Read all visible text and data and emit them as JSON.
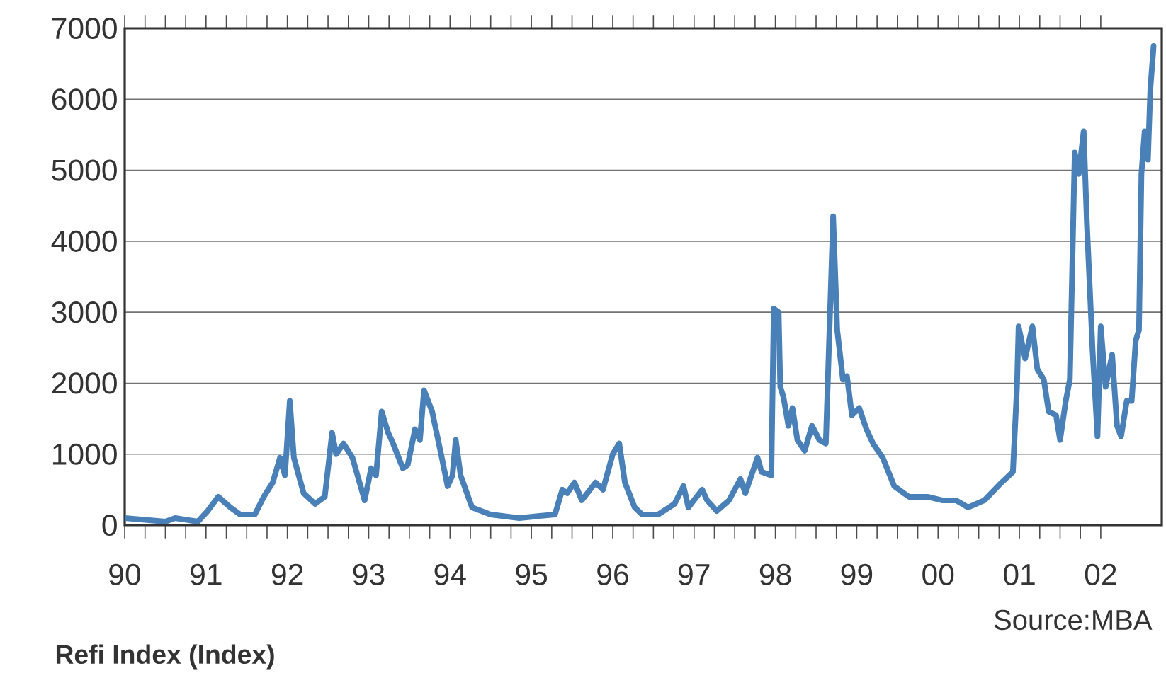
{
  "chart_data": {
    "type": "line",
    "title": "Refi Index (Index)",
    "annotations": [
      "Source:MBA"
    ],
    "x": [
      1990.0,
      1990.5,
      1990.62,
      1990.9,
      1991.02,
      1991.15,
      1991.3,
      1991.42,
      1991.6,
      1991.71,
      1991.82,
      1991.91,
      1991.97,
      1992.03,
      1992.08,
      1992.2,
      1992.34,
      1992.46,
      1992.55,
      1992.6,
      1992.69,
      1992.8,
      1992.95,
      1993.03,
      1993.09,
      1993.16,
      1993.24,
      1993.3,
      1993.42,
      1993.48,
      1993.57,
      1993.63,
      1993.68,
      1993.78,
      1993.89,
      1993.97,
      1994.03,
      1994.07,
      1994.13,
      1994.27,
      1994.5,
      1994.85,
      1995.29,
      1995.38,
      1995.44,
      1995.53,
      1995.62,
      1995.79,
      1995.88,
      1996.0,
      1996.08,
      1996.15,
      1996.27,
      1996.36,
      1996.56,
      1996.76,
      1996.87,
      1996.93,
      1997.1,
      1997.16,
      1997.28,
      1997.43,
      1997.57,
      1997.63,
      1997.78,
      1997.83,
      1997.95,
      1997.98,
      1998.04,
      1998.06,
      1998.1,
      1998.16,
      1998.21,
      1998.27,
      1998.36,
      1998.45,
      1998.54,
      1998.62,
      1998.71,
      1998.76,
      1998.83,
      1998.88,
      1998.94,
      1999.03,
      1999.12,
      1999.2,
      1999.32,
      1999.46,
      1999.64,
      1999.87,
      2000.05,
      2000.22,
      2000.37,
      2000.57,
      2000.78,
      2000.92,
      2000.97,
      2000.99,
      2001.07,
      2001.16,
      2001.22,
      2001.3,
      2001.36,
      2001.45,
      2001.5,
      2001.57,
      2001.62,
      2001.68,
      2001.73,
      2001.79,
      2001.83,
      2001.9,
      2001.96,
      2002.0,
      2002.06,
      2002.14,
      2002.2,
      2002.25,
      2002.32,
      2002.38,
      2002.43,
      2002.47,
      2002.5,
      2002.54,
      2002.58,
      2002.61,
      2002.65
    ],
    "series": [
      {
        "color": "#4a80b8",
        "values": [
          100,
          50,
          100,
          50,
          200,
          400,
          250,
          150,
          150,
          400,
          600,
          950,
          700,
          1750,
          950,
          450,
          300,
          400,
          1300,
          1000,
          1150,
          950,
          350,
          800,
          700,
          1600,
          1300,
          1150,
          800,
          850,
          1350,
          1200,
          1900,
          1600,
          1000,
          550,
          700,
          1200,
          700,
          250,
          150,
          100,
          150,
          500,
          450,
          600,
          350,
          600,
          500,
          1000,
          1150,
          600,
          250,
          150,
          150,
          300,
          550,
          250,
          500,
          350,
          200,
          350,
          650,
          450,
          950,
          750,
          700,
          3050,
          3000,
          1950,
          1800,
          1400,
          1650,
          1200,
          1050,
          1400,
          1200,
          1150,
          4350,
          2750,
          2050,
          2100,
          1550,
          1650,
          1350,
          1150,
          950,
          550,
          400,
          400,
          350,
          350,
          250,
          350,
          600,
          750,
          1950,
          2800,
          2350,
          2800,
          2200,
          2050,
          1600,
          1550,
          1200,
          1750,
          2050,
          5250,
          4950,
          5550,
          4250,
          2450,
          1250,
          2800,
          1950,
          2400,
          1400,
          1250,
          1750,
          1750,
          2600,
          2750,
          4950,
          5550,
          5150,
          6150,
          6750
        ]
      }
    ],
    "xlim": [
      1990,
      2002.75
    ],
    "xticks": [
      {
        "value": 1990,
        "label": "90"
      },
      {
        "value": 1991,
        "label": "91"
      },
      {
        "value": 1992,
        "label": "92"
      },
      {
        "value": 1993,
        "label": "93"
      },
      {
        "value": 1994,
        "label": "94"
      },
      {
        "value": 1995,
        "label": "95"
      },
      {
        "value": 1996,
        "label": "96"
      },
      {
        "value": 1997,
        "label": "97"
      },
      {
        "value": 1998,
        "label": "98"
      },
      {
        "value": 1999,
        "label": "99"
      },
      {
        "value": 2000,
        "label": "00"
      },
      {
        "value": 2001,
        "label": "01"
      },
      {
        "value": 2002,
        "label": "02"
      }
    ],
    "ylim": [
      0,
      7000
    ],
    "yticks": [
      0,
      1000,
      2000,
      3000,
      4000,
      5000,
      6000,
      7000
    ],
    "grid": "y"
  }
}
